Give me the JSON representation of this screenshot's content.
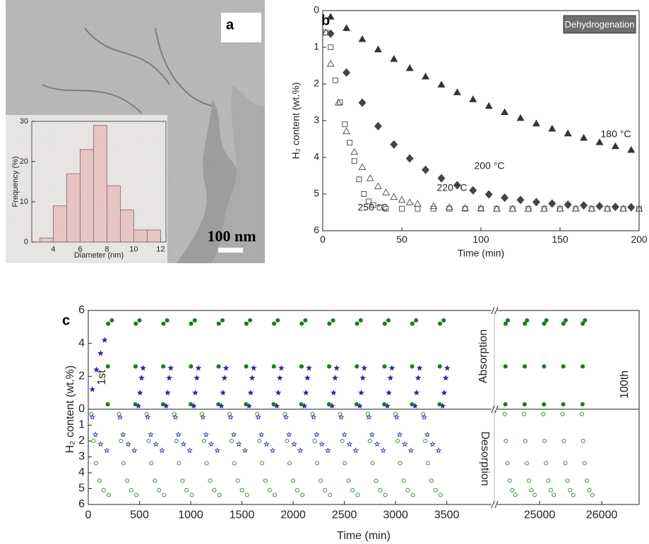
{
  "image": {
    "panel_label": "a",
    "scale_bar": "100 nm"
  },
  "chart_data": [
    {
      "type": "histogram",
      "xlabel": "Diameter (nm)",
      "ylabel": "Frequency (%)",
      "bins": [
        3,
        4,
        5,
        6,
        7,
        8,
        9,
        10,
        11,
        12
      ],
      "values": [
        1,
        9,
        17,
        23,
        29,
        14,
        8,
        3,
        3
      ],
      "color": "#e9bcbc",
      "xlim": [
        2.4,
        12.4
      ],
      "xticks": [
        4,
        6,
        8,
        10,
        12
      ],
      "ylim": [
        0,
        30
      ],
      "yticks": [
        0,
        10,
        20,
        30
      ]
    },
    {
      "type": "scatter",
      "panel_label": "b",
      "legend_box": "Dehydrogenation",
      "xlabel": "Time (min)",
      "ylabel": "H₂ content (wt.%)",
      "xlim": [
        0,
        200
      ],
      "xticks": [
        0,
        50,
        100,
        150,
        200
      ],
      "ylim": [
        0,
        6
      ],
      "yticks": [
        0,
        1,
        2,
        3,
        4,
        5,
        6
      ],
      "y_inverted": true,
      "series": [
        {
          "name": "180 °C",
          "color": "#333333",
          "marker": "triangle",
          "filled": true,
          "x": [
            5,
            15,
            25,
            35,
            45,
            55,
            65,
            75,
            85,
            95,
            105,
            115,
            125,
            135,
            145,
            155,
            165,
            175,
            185,
            195
          ],
          "values": [
            0.17,
            0.48,
            0.78,
            1.06,
            1.32,
            1.57,
            1.8,
            2.02,
            2.23,
            2.42,
            2.6,
            2.77,
            2.93,
            3.08,
            3.22,
            3.35,
            3.47,
            3.59,
            3.7,
            3.8
          ]
        },
        {
          "name": "200 °C",
          "color": "#444444",
          "marker": "diamond",
          "filled": true,
          "x": [
            5,
            15,
            25,
            35,
            45,
            55,
            65,
            75,
            85,
            95,
            105,
            115,
            125,
            135,
            145,
            155,
            165,
            175,
            185,
            195
          ],
          "values": [
            0.63,
            1.69,
            2.51,
            3.15,
            3.65,
            4.03,
            4.34,
            4.57,
            4.76,
            4.9,
            5.01,
            5.1,
            5.16,
            5.22,
            5.26,
            5.29,
            5.31,
            5.33,
            5.35,
            5.36
          ]
        },
        {
          "name": "220 °C",
          "color": "#555555",
          "marker": "triangle",
          "filled": false,
          "x": [
            2,
            5,
            10,
            15,
            20,
            25,
            30,
            35,
            40,
            45,
            50,
            55,
            60,
            70,
            80,
            90,
            100,
            110,
            120,
            130,
            140,
            150,
            160,
            170,
            180,
            190,
            200
          ],
          "values": [
            0.6,
            1.45,
            2.51,
            3.29,
            3.85,
            4.27,
            4.57,
            4.79,
            4.96,
            5.08,
            5.16,
            5.23,
            5.27,
            5.33,
            5.36,
            5.38,
            5.39,
            5.4,
            5.4,
            5.4,
            5.4,
            5.4,
            5.4,
            5.4,
            5.4,
            5.4,
            5.4
          ]
        },
        {
          "name": "250 °C",
          "color": "#555555",
          "marker": "square",
          "filled": false,
          "x": [
            2,
            5,
            8,
            11,
            14,
            17,
            20,
            23,
            26,
            29,
            32,
            36,
            40,
            50,
            60,
            70,
            80,
            90,
            100,
            110,
            120,
            130,
            140,
            150,
            160,
            170,
            180,
            190,
            200
          ],
          "values": [
            0.6,
            1.0,
            1.9,
            2.5,
            3.1,
            3.6,
            4.1,
            4.6,
            5.0,
            5.2,
            5.3,
            5.37,
            5.4,
            5.4,
            5.4,
            5.4,
            5.4,
            5.4,
            5.4,
            5.4,
            5.4,
            5.4,
            5.4,
            5.4,
            5.4,
            5.4,
            5.4,
            5.4,
            5.4
          ]
        }
      ]
    },
    {
      "type": "scatter",
      "panel_label": "c",
      "ylabel": "H₂ content (wt.%)",
      "annotations": [
        "1st",
        "Absorption",
        "100th"
      ],
      "xlim": [
        0,
        26600
      ],
      "x_break": [
        3930,
        24330
      ],
      "ylim": [
        0,
        6
      ],
      "yticks": [
        0,
        2,
        4,
        6
      ],
      "series": [
        {
          "color": "#1f7a1f",
          "marker": "circle",
          "filled": true,
          "x": [
            190,
            192,
            194,
            230,
            460,
            462,
            464,
            500,
            730,
            732,
            734,
            770,
            1000,
            1002,
            1004,
            1040,
            1270,
            1272,
            1274,
            1310,
            1540,
            1542,
            1544,
            1580,
            1810,
            1812,
            1814,
            1850,
            2080,
            2082,
            2084,
            2120,
            2350,
            2352,
            2354,
            2390,
            2620,
            2622,
            2624,
            2660,
            2890,
            2892,
            2894,
            2930,
            3160,
            3162,
            3164,
            3200,
            3430,
            3432,
            3434,
            3470,
            24450,
            24452,
            24454,
            24490,
            24760,
            24762,
            24764,
            24800,
            25070,
            25072,
            25074,
            25110,
            25380,
            25382,
            25384,
            25420,
            25690,
            25692,
            25694,
            25730
          ],
          "values": [
            0.3,
            2.6,
            5.2,
            5.4,
            0.3,
            2.6,
            5.2,
            5.4,
            0.3,
            2.6,
            5.2,
            5.4,
            0.3,
            2.6,
            5.2,
            5.4,
            0.3,
            2.6,
            5.2,
            5.4,
            0.3,
            2.6,
            5.2,
            5.4,
            0.3,
            2.6,
            5.2,
            5.4,
            0.3,
            2.6,
            5.2,
            5.4,
            0.3,
            2.6,
            5.2,
            5.4,
            0.3,
            2.6,
            5.2,
            5.4,
            0.3,
            2.6,
            5.2,
            5.4,
            0.3,
            2.6,
            5.2,
            5.4,
            0.3,
            2.6,
            5.2,
            5.4,
            0.3,
            2.6,
            5.2,
            5.4,
            0.3,
            2.6,
            5.2,
            5.4,
            0.3,
            2.6,
            5.2,
            5.4,
            0.3,
            2.6,
            5.2,
            5.4,
            0.3,
            2.6,
            5.2,
            5.4
          ]
        },
        {
          "color": "#2a2aa8",
          "marker": "star",
          "filled": true,
          "x": [
            40,
            80,
            120,
            160,
            490,
            505,
            520,
            535,
            760,
            775,
            790,
            805,
            1030,
            1045,
            1060,
            1075,
            1300,
            1315,
            1330,
            1345,
            1570,
            1585,
            1600,
            1615,
            1840,
            1855,
            1870,
            1885,
            2110,
            2125,
            2140,
            2155,
            2380,
            2395,
            2410,
            2425,
            2650,
            2665,
            2680,
            2695,
            2920,
            2935,
            2950,
            2965,
            3190,
            3205,
            3220,
            3235,
            3460,
            3475,
            3490,
            3505
          ],
          "values": [
            1.2,
            2.4,
            3.4,
            4.2,
            0.2,
            1.0,
            1.9,
            2.5,
            0.2,
            1.0,
            1.9,
            2.5,
            0.2,
            1.0,
            1.9,
            2.5,
            0.2,
            1.0,
            1.9,
            2.5,
            0.2,
            1.0,
            1.9,
            2.5,
            0.2,
            1.0,
            1.9,
            2.5,
            0.2,
            1.0,
            1.9,
            2.5,
            0.2,
            1.0,
            1.9,
            2.5,
            0.2,
            1.0,
            1.9,
            2.5,
            0.2,
            1.0,
            1.9,
            2.5,
            0.2,
            1.0,
            1.9,
            2.5,
            0.2,
            1.0,
            1.9,
            2.5
          ]
        }
      ]
    },
    {
      "type": "scatter",
      "xlabel": "Time (min)",
      "annotations": [
        "Desorption"
      ],
      "xlim": [
        0,
        26600
      ],
      "x_break": [
        3930,
        24330
      ],
      "xticks": [
        0,
        500,
        1000,
        1500,
        2000,
        2500,
        3000,
        3500,
        25000,
        26000
      ],
      "ylim": [
        0,
        6
      ],
      "yticks": [
        1,
        2,
        3,
        4,
        5,
        6
      ],
      "y_inverted": true,
      "series": [
        {
          "color": "#3a8a3a",
          "marker": "circle",
          "filled": false,
          "x": [
            30,
            50,
            75,
            110,
            150,
            200,
            300,
            320,
            345,
            380,
            420,
            470,
            570,
            590,
            615,
            650,
            690,
            740,
            840,
            860,
            885,
            920,
            960,
            1010,
            1110,
            1130,
            1155,
            1190,
            1230,
            1280,
            1380,
            1400,
            1425,
            1460,
            1500,
            1550,
            1650,
            1670,
            1695,
            1730,
            1770,
            1820,
            1920,
            1940,
            1965,
            2000,
            2040,
            2090,
            2190,
            2210,
            2235,
            2270,
            2310,
            2360,
            2460,
            2480,
            2505,
            2540,
            2580,
            2630,
            2730,
            2750,
            2775,
            2810,
            2850,
            2900,
            3000,
            3020,
            3045,
            3080,
            3120,
            3170,
            3270,
            3290,
            3315,
            3350,
            3390,
            3440,
            24440,
            24460,
            24485,
            24520,
            24560,
            24610,
            24750,
            24770,
            24795,
            24830,
            24870,
            24920,
            25060,
            25080,
            25105,
            25140,
            25180,
            25230,
            25370,
            25390,
            25415,
            25450,
            25490,
            25540,
            25680,
            25700,
            25725,
            25760,
            25800,
            25850
          ],
          "values": [
            0.3,
            2.0,
            3.4,
            4.5,
            5.1,
            5.4,
            0.3,
            2.0,
            3.4,
            4.5,
            5.1,
            5.4,
            0.3,
            2.0,
            3.4,
            4.5,
            5.1,
            5.4,
            0.3,
            2.0,
            3.4,
            4.5,
            5.1,
            5.4,
            0.3,
            2.0,
            3.4,
            4.5,
            5.1,
            5.4,
            0.3,
            2.0,
            3.4,
            4.5,
            5.1,
            5.4,
            0.3,
            2.0,
            3.4,
            4.5,
            5.1,
            5.4,
            0.3,
            2.0,
            3.4,
            4.5,
            5.1,
            5.4,
            0.3,
            2.0,
            3.4,
            4.5,
            5.1,
            5.4,
            0.3,
            2.0,
            3.4,
            4.5,
            5.1,
            5.4,
            0.3,
            2.0,
            3.4,
            4.5,
            5.1,
            5.4,
            0.3,
            2.0,
            3.4,
            4.5,
            5.1,
            5.4,
            0.3,
            2.0,
            3.4,
            4.5,
            5.1,
            5.4,
            0.3,
            2.0,
            3.4,
            4.5,
            5.1,
            5.4,
            0.3,
            2.0,
            3.4,
            4.5,
            5.1,
            5.4,
            0.3,
            2.0,
            3.4,
            4.5,
            5.1,
            5.4,
            0.3,
            2.0,
            3.4,
            4.5,
            5.1,
            5.4,
            0.3,
            2.0,
            3.4,
            4.5,
            5.1,
            5.4
          ]
        },
        {
          "color": "#4a4ab0",
          "marker": "star",
          "filled": false,
          "x": [
            40,
            70,
            120,
            180,
            310,
            340,
            390,
            450,
            580,
            610,
            660,
            720,
            850,
            880,
            930,
            990,
            1120,
            1150,
            1200,
            1260,
            1390,
            1420,
            1470,
            1530,
            1660,
            1690,
            1740,
            1800,
            1930,
            1960,
            2010,
            2070,
            2200,
            2230,
            2280,
            2340,
            2470,
            2500,
            2550,
            2610,
            2740,
            2770,
            2820,
            2880,
            3010,
            3040,
            3090,
            3150,
            3280,
            3310,
            3360,
            3420
          ],
          "values": [
            0.5,
            1.6,
            2.2,
            2.6,
            0.5,
            1.6,
            2.2,
            2.6,
            0.5,
            1.6,
            2.2,
            2.6,
            0.5,
            1.6,
            2.2,
            2.6,
            0.5,
            1.6,
            2.2,
            2.6,
            0.5,
            1.6,
            2.2,
            2.6,
            0.5,
            1.6,
            2.2,
            2.6,
            0.5,
            1.6,
            2.2,
            2.6,
            0.5,
            1.6,
            2.2,
            2.6,
            0.5,
            1.6,
            2.2,
            2.6,
            0.5,
            1.6,
            2.2,
            2.6,
            0.5,
            1.6,
            2.2,
            2.6,
            0.5,
            1.6,
            2.2,
            2.6
          ]
        }
      ]
    }
  ]
}
